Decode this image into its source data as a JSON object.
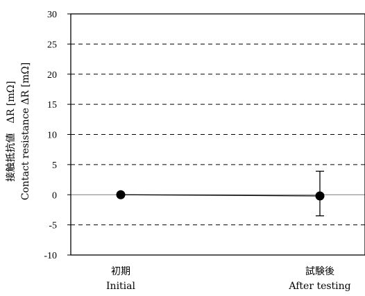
{
  "chart_data": {
    "type": "scatter",
    "title": "",
    "ylabel_ja": "接触抵抗値　ΔR [mΩ]",
    "ylabel_en": "Contact resistance ΔR [mΩ]",
    "xlabel": "",
    "categories": [
      {
        "ja": "初期",
        "en": "Initial"
      },
      {
        "ja": "試験後",
        "en": "After testing"
      }
    ],
    "yticks": [
      "30",
      "25",
      "20",
      "15",
      "10",
      "5",
      "0",
      "-5",
      "-10"
    ],
    "ylim": [
      -10,
      30
    ],
    "grid": "dashed horizontal",
    "series": [
      {
        "values": [
          0.0,
          -0.2
        ],
        "error_low": [
          0.0,
          -3.5
        ],
        "error_high": [
          0.0,
          3.9
        ],
        "color": "#000000",
        "marker": "circle"
      }
    ]
  }
}
